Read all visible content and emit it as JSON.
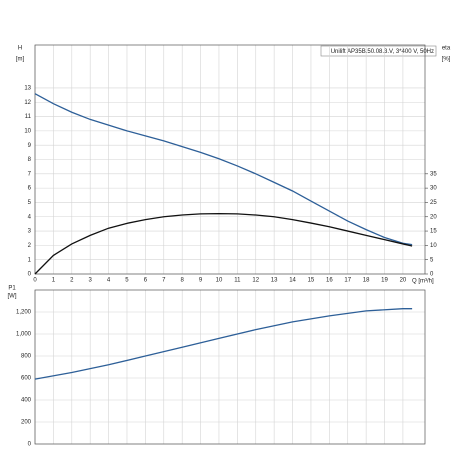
{
  "chart_data": [
    {
      "type": "line",
      "title": "Unilift AP35B.50.08.3.V, 3*400 V, 50Hz",
      "y_label": "H",
      "y_unit": "[m]",
      "y2_label": "eta",
      "y2_unit": "[%]",
      "x_label": "Q [m³/h]",
      "x": [
        0,
        1,
        2,
        3,
        4,
        5,
        6,
        7,
        8,
        9,
        10,
        11,
        12,
        13,
        14,
        15,
        16,
        17,
        18,
        19,
        20,
        20.5
      ],
      "xlim": [
        0,
        21.2
      ],
      "xticks": [
        0,
        1,
        2,
        3,
        4,
        5,
        6,
        7,
        8,
        9,
        10,
        11,
        12,
        13,
        14,
        15,
        16,
        17,
        18,
        19,
        20
      ],
      "ylim": [
        0,
        16
      ],
      "yticks": [
        0,
        1,
        2,
        3,
        4,
        5,
        6,
        7,
        8,
        9,
        10,
        11,
        12,
        13
      ],
      "y2lim": [
        0,
        80
      ],
      "y2ticks": [
        0,
        5,
        10,
        15,
        20,
        25,
        30,
        35
      ],
      "grid": true,
      "series": [
        {
          "name": "H",
          "color": "#2d5f98",
          "values": [
            12.6,
            11.9,
            11.3,
            10.8,
            10.4,
            10.0,
            9.65,
            9.3,
            8.9,
            8.5,
            8.05,
            7.55,
            7.0,
            6.4,
            5.8,
            5.1,
            4.4,
            3.7,
            3.1,
            2.55,
            2.15,
            2.05
          ]
        },
        {
          "name": "eta",
          "color": "#111111",
          "axis": "y2",
          "values": [
            0,
            6.5,
            10.5,
            13.5,
            16,
            17.7,
            19,
            20,
            20.6,
            21,
            21.1,
            21,
            20.6,
            20,
            19,
            17.8,
            16.5,
            15,
            13.5,
            12,
            10.5,
            9.8
          ]
        }
      ]
    },
    {
      "type": "line",
      "y_label": "P1",
      "y_unit": "[W]",
      "x": [
        0,
        2,
        4,
        6,
        8,
        10,
        12,
        14,
        16,
        18,
        20,
        20.5
      ],
      "xlim": [
        0,
        21.2
      ],
      "ylim": [
        0,
        1400
      ],
      "yticks": [
        0,
        200,
        400,
        600,
        800,
        {
          "value": 1000,
          "label": "1,000"
        },
        {
          "value": 1200,
          "label": "1,200"
        }
      ],
      "grid": true,
      "series": [
        {
          "name": "P1",
          "color": "#2d5f98",
          "values": [
            590,
            650,
            720,
            800,
            880,
            960,
            1040,
            1110,
            1165,
            1210,
            1230,
            1230
          ]
        }
      ]
    }
  ]
}
